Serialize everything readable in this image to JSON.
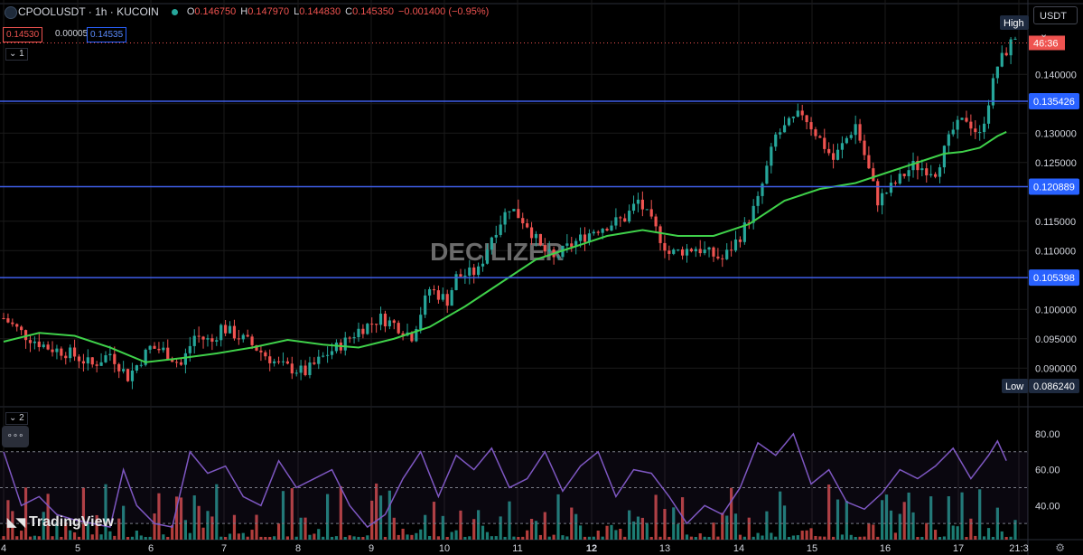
{
  "header": {
    "symbol": "CPOOLUSDT · 1h · KUCOIN",
    "o_label": "O",
    "o": "0.146750",
    "h_label": "H",
    "h": "0.147970",
    "l_label": "L",
    "l": "0.144830",
    "c_label": "C",
    "c": "0.145350",
    "change": "−0.001400 (−0.95%)",
    "sell_price": "0.14530",
    "spread": "0.00005",
    "buy_price": "0.14535"
  },
  "currency": "USDT",
  "pane1_tag": "1",
  "pane2_tag": "2",
  "more_button": "∘∘∘",
  "brand": "TradingView",
  "watermark": "DECILIZER",
  "colors": {
    "bg": "#000000",
    "grid": "#1a1a1a",
    "up": "#26a69a",
    "down": "#ef5350",
    "ma": "#3fd14a",
    "level": "#3f5ee8",
    "rsi": "#7e57c2",
    "axis_text": "#d1d4dc",
    "tag_bg": "#2962ff"
  },
  "chart_data": [
    {
      "type": "candlestick",
      "title": "CPOOLUSDT · 1h · KUCOIN",
      "x_axis_ticks": [
        "4",
        "5",
        "6",
        "7",
        "8",
        "9",
        "10",
        "11",
        "12",
        "13",
        "14",
        "15",
        "16",
        "17",
        "21:3"
      ],
      "y_axis_ticks": [
        0.14,
        0.135,
        0.13,
        0.125,
        0.115,
        0.11,
        0.1,
        0.095,
        0.09
      ],
      "y_axis_tick_labels": [
        "0.140000",
        "0.135000",
        "0.130000",
        "0.125000",
        "0.115000",
        "0.110000",
        "0.100000",
        "0.095000",
        "0.090000"
      ],
      "ylim": [
        0.0845,
        0.1505
      ],
      "horizontal_levels": [
        {
          "value": 0.135426,
          "label": "0.135426"
        },
        {
          "value": 0.120889,
          "label": "0.120889"
        },
        {
          "value": 0.105398,
          "label": "0.105398"
        }
      ],
      "markers": {
        "high_label": "High",
        "high_value": 0.14797,
        "low_label": "Low",
        "low_value": 0.08624,
        "low_value_label": "0.086240",
        "current_price": 0.14535,
        "current_label": "46:36"
      },
      "price_path": {
        "t": [
          0,
          5,
          10,
          15,
          20,
          24,
          28,
          33,
          36,
          40,
          43,
          47,
          49,
          55,
          62,
          68,
          73,
          77,
          80,
          85,
          88,
          92,
          96,
          100,
          102,
          107,
          110,
          114,
          118,
          121,
          124,
          127,
          133,
          140,
          143,
          147,
          150,
          156,
          162,
          166,
          170,
          174,
          180,
          187,
          192,
          197,
          201,
          205,
          210,
          214,
          217,
          220,
          224,
          228
        ],
        "close": [
          0.0985,
          0.0955,
          0.0935,
          0.0925,
          0.0905,
          0.0925,
          0.0885,
          0.0935,
          0.093,
          0.0905,
          0.0955,
          0.0945,
          0.097,
          0.0945,
          0.0905,
          0.0893,
          0.0925,
          0.0945,
          0.0965,
          0.0985,
          0.0975,
          0.0955,
          0.1035,
          0.1015,
          0.1055,
          0.1065,
          0.1125,
          0.1175,
          0.1145,
          0.1105,
          0.1085,
          0.1105,
          0.1135,
          0.1155,
          0.1185,
          0.1135,
          0.1095,
          0.1105,
          0.1085,
          0.1125,
          0.1185,
          0.1295,
          0.1335,
          0.1255,
          0.1315,
          0.1185,
          0.1215,
          0.1245,
          0.1235,
          0.1305,
          0.1325,
          0.1295,
          0.1415,
          0.1465
        ]
      },
      "moving_average": {
        "t": [
          0,
          8,
          16,
          24,
          32,
          40,
          48,
          56,
          64,
          72,
          80,
          88,
          96,
          104,
          112,
          120,
          128,
          136,
          144,
          152,
          160,
          168,
          176,
          184,
          192,
          200,
          208,
          212,
          216,
          220,
          224,
          226
        ],
        "value": [
          0.0945,
          0.096,
          0.0955,
          0.0935,
          0.091,
          0.0917,
          0.0925,
          0.0935,
          0.0948,
          0.094,
          0.0935,
          0.095,
          0.097,
          0.1005,
          0.1045,
          0.1085,
          0.1105,
          0.1125,
          0.1135,
          0.1125,
          0.1125,
          0.1145,
          0.1185,
          0.1205,
          0.1215,
          0.1235,
          0.1255,
          0.1265,
          0.1268,
          0.1275,
          0.1295,
          0.1302
        ]
      }
    },
    {
      "type": "line",
      "title": "",
      "y_axis_ticks": [
        80,
        60,
        40
      ],
      "y_axis_tick_labels": [
        "80.00",
        "60.00",
        "40.00"
      ],
      "ylim": [
        22,
        82
      ],
      "bands": [
        70,
        50,
        30
      ],
      "rsi": {
        "t": [
          0,
          4,
          8,
          12,
          16,
          20,
          24,
          27,
          30,
          34,
          38,
          42,
          46,
          50,
          54,
          58,
          62,
          66,
          70,
          74,
          78,
          82,
          86,
          90,
          94,
          98,
          102,
          106,
          110,
          114,
          118,
          122,
          126,
          130,
          134,
          138,
          142,
          146,
          150,
          154,
          158,
          162,
          166,
          170,
          174,
          178,
          182,
          186,
          190,
          194,
          198,
          202,
          206,
          210,
          214,
          218,
          222,
          224,
          226
        ],
        "value": [
          70,
          40,
          45,
          35,
          32,
          30,
          28,
          60,
          40,
          30,
          28,
          70,
          58,
          62,
          45,
          40,
          65,
          50,
          55,
          60,
          40,
          28,
          35,
          55,
          70,
          45,
          68,
          60,
          72,
          50,
          55,
          70,
          48,
          62,
          70,
          45,
          60,
          58,
          45,
          30,
          40,
          35,
          50,
          75,
          68,
          80,
          52,
          60,
          42,
          38,
          47,
          60,
          55,
          62,
          72,
          55,
          68,
          76,
          65
        ]
      }
    }
  ]
}
